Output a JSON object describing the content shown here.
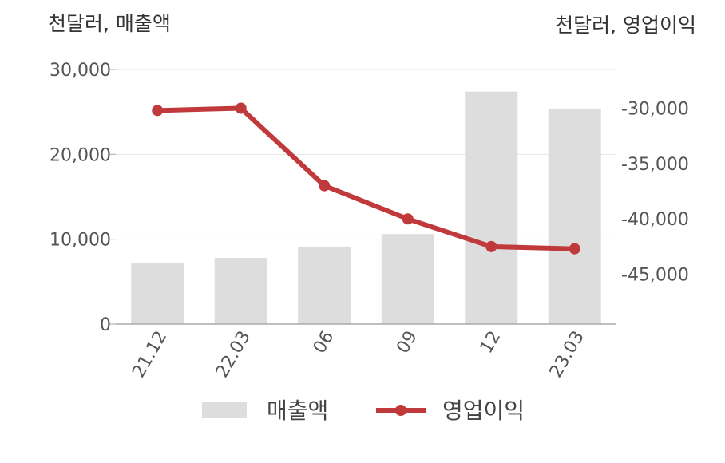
{
  "chart_data": {
    "type": "bar+line",
    "categories": [
      "21.12",
      "22.03",
      "06",
      "09",
      "12",
      "23.03"
    ],
    "series": [
      {
        "name": "매출액",
        "type": "bar",
        "axis": "left",
        "color": "#dddddd",
        "values": [
          7200,
          7800,
          9100,
          10600,
          27400,
          25400
        ]
      },
      {
        "name": "영업이익",
        "type": "line",
        "axis": "right",
        "color": "#c0393b",
        "values": [
          -30200,
          -30000,
          -37000,
          -40000,
          -42500,
          -42700
        ]
      }
    ],
    "left_axis": {
      "unit_label": "천달러, 매출액",
      "range": [
        0,
        30000
      ],
      "ticks": [
        0,
        10000,
        20000,
        30000
      ],
      "tick_labels": [
        "0",
        "10,000",
        "20,000",
        "30,000"
      ]
    },
    "right_axis": {
      "unit_label": "천달러, 영업이익",
      "range": [
        -49500,
        -26500
      ],
      "ticks": [
        -30000,
        -35000,
        -40000,
        -45000
      ],
      "tick_labels": [
        "-30,000",
        "-35,000",
        "-40,000",
        "-45,000"
      ]
    },
    "grid": true,
    "legend": {
      "placement": "bottom",
      "entries": [
        "매출액",
        "영업이익"
      ]
    }
  }
}
